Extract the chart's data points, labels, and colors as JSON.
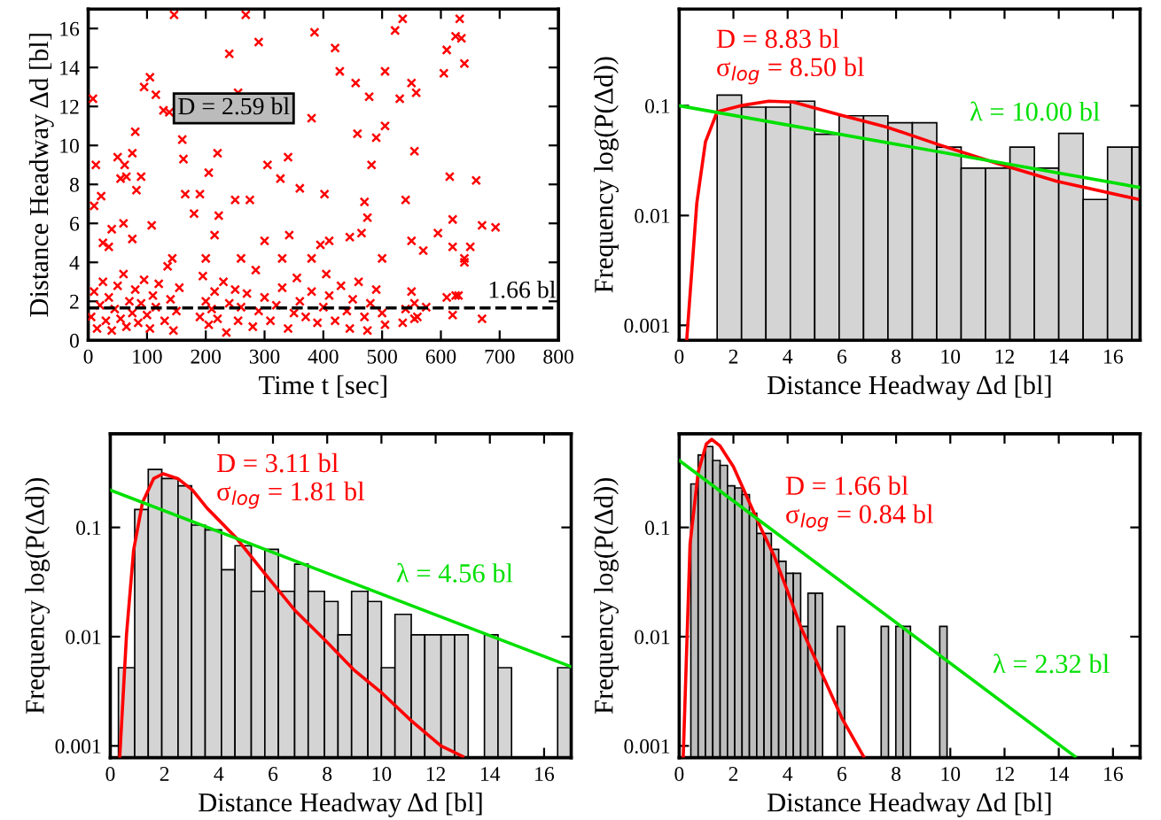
{
  "chart_data": [
    {
      "type": "scatter",
      "xlabel": "Time t [sec]",
      "ylabel": "Distance Headway Δd [bl]",
      "marker": "cross",
      "color": "#ff0000",
      "x": [
        8,
        13,
        10,
        22,
        40,
        50,
        62,
        65,
        55,
        75,
        82,
        80,
        90,
        95,
        105,
        115,
        128,
        138,
        146,
        160,
        162,
        165,
        180,
        190,
        205,
        220,
        222,
        240,
        255,
        250,
        268,
        275,
        290,
        305,
        327,
        340,
        360,
        385,
        380,
        402,
        420,
        428,
        455,
        458,
        470,
        478,
        482,
        490,
        505,
        505,
        522,
        530,
        535,
        540,
        550,
        558,
        555,
        605,
        610,
        625,
        632,
        635,
        640,
        615,
        595,
        620,
        640,
        650,
        670,
        693,
        660,
        555,
        670,
        75,
        35,
        25,
        60,
        108,
        143,
        200,
        215,
        260,
        300,
        330,
        342,
        380,
        395,
        410,
        445,
        465,
        500,
        550,
        570,
        475,
        5,
        10,
        15,
        20,
        25,
        30,
        35,
        40,
        45,
        50,
        55,
        60,
        65,
        70,
        75,
        80,
        85,
        90,
        95,
        100,
        105,
        110,
        115,
        120,
        130,
        135,
        140,
        145,
        150,
        155,
        190,
        195,
        200,
        205,
        210,
        215,
        220,
        230,
        235,
        240,
        250,
        255,
        260,
        270,
        280,
        285,
        290,
        300,
        310,
        320,
        330,
        340,
        350,
        355,
        360,
        370,
        380,
        390,
        400,
        405,
        410,
        420,
        430,
        440,
        445,
        450,
        460,
        470,
        475,
        480,
        490,
        500,
        505,
        535,
        540,
        550,
        555,
        560,
        575,
        610,
        620,
        625,
        630,
        640,
        620
      ],
      "values": [
        12.4,
        9.0,
        6.9,
        7.4,
        5.7,
        9.4,
        9.0,
        8.4,
        8.3,
        9.6,
        7.7,
        10.7,
        8.4,
        13.0,
        13.5,
        12.6,
        11.8,
        11.7,
        16.7,
        10.3,
        9.3,
        7.5,
        6.5,
        7.5,
        8.6,
        9.6,
        6.4,
        14.7,
        12.7,
        7.2,
        16.7,
        7.2,
        15.3,
        9.0,
        8.3,
        9.4,
        7.8,
        15.8,
        11.4,
        7.5,
        15.0,
        13.8,
        13.2,
        10.6,
        7.1,
        12.5,
        9.0,
        10.4,
        11.0,
        13.8,
        15.9,
        12.4,
        16.5,
        7.2,
        13.2,
        12.7,
        9.7,
        13.7,
        14.9,
        15.6,
        16.5,
        15.5,
        14.2,
        8.4,
        5.5,
        6.2,
        4.2,
        4.8,
        5.9,
        5.8,
        8.2,
        1.1,
        1.1,
        5.2,
        4.8,
        5.0,
        6.0,
        5.9,
        4.2,
        4.2,
        5.4,
        4.2,
        5.1,
        4.2,
        5.4,
        4.2,
        4.9,
        5.1,
        5.3,
        5.5,
        4.2,
        5.1,
        4.6,
        6.3,
        1.2,
        2.5,
        0.6,
        1.8,
        3.0,
        1.0,
        2.2,
        0.5,
        1.6,
        2.8,
        1.1,
        3.4,
        0.7,
        2.0,
        1.4,
        2.6,
        0.9,
        1.9,
        3.1,
        1.3,
        0.6,
        2.3,
        1.7,
        2.9,
        1.0,
        3.8,
        2.1,
        0.5,
        1.5,
        2.7,
        1.2,
        3.3,
        2.0,
        0.8,
        1.6,
        2.5,
        1.1,
        3.0,
        0.4,
        1.9,
        2.6,
        1.0,
        1.7,
        2.4,
        0.7,
        3.6,
        1.5,
        2.2,
        1.0,
        1.8,
        2.7,
        0.6,
        1.4,
        3.2,
        2.0,
        1.2,
        2.5,
        0.9,
        1.7,
        3.4,
        2.3,
        1.0,
        2.8,
        1.5,
        0.6,
        2.1,
        3.0,
        1.2,
        0.5,
        1.9,
        2.6,
        1.4,
        0.8,
        0.9,
        1.6,
        2.5,
        1.9,
        1.2,
        1.7,
        2.2,
        1.3,
        2.3,
        2.3,
        4.0,
        4.8
      ],
      "xlim": [
        0,
        800
      ],
      "xticks": [
        0,
        100,
        200,
        300,
        400,
        500,
        600,
        700,
        800
      ],
      "ylim": [
        0,
        17
      ],
      "yticks": [
        0,
        2,
        4,
        6,
        8,
        10,
        12,
        14,
        16
      ],
      "ref_lines": [
        {
          "axis": "y",
          "value": 1.66,
          "label": "1.66 bl",
          "color": "#000000",
          "line_style": "dashed"
        }
      ],
      "annotations": [
        "D = 2.59 bl"
      ]
    },
    {
      "type": "histogram",
      "xlabel": "Distance Headway Δd [bl]",
      "ylabel": "Frequency log(P(Δd))",
      "color": "#d4d4d4",
      "log": "y",
      "bins": [
        1.4,
        2.3,
        3.2,
        4.1,
        5.0,
        5.9,
        6.8,
        7.7,
        8.6,
        9.5,
        10.4,
        11.3,
        12.2,
        13.1,
        14.0,
        14.9,
        15.8,
        16.7,
        17.0
      ],
      "values": [
        0.125,
        0.097,
        0.097,
        0.11,
        0.055,
        0.081,
        0.081,
        0.07,
        0.07,
        0.042,
        0.027,
        0.027,
        0.042,
        0.027,
        0.056,
        0.014,
        0.042,
        0.042
      ],
      "series": [
        {
          "type": "line",
          "name": "D = 8.83 bl\nσ$_{log}$ = 8.50 bl",
          "color": "#ff0000",
          "x": [
            0.28,
            0.65,
            0.97,
            1.4,
            2.26,
            3.3,
            4.2,
            5.9,
            7.65,
            9.6,
            11.7,
            13.9,
            16.9
          ],
          "values": [
            0.00075,
            0.013,
            0.047,
            0.088,
            0.1,
            0.11,
            0.108,
            0.083,
            0.064,
            0.044,
            0.03,
            0.0206,
            0.0141
          ]
        },
        {
          "type": "line",
          "name": "λ = 10.00 bl",
          "color": "#00e000",
          "x": [
            0,
            17
          ],
          "values": [
            0.1,
            0.018
          ]
        }
      ],
      "xlim": [
        0,
        17
      ],
      "xticks": [
        0,
        2,
        4,
        6,
        8,
        10,
        12,
        14,
        16
      ],
      "ylim": [
        0.00073,
        0.76
      ],
      "yticks": [
        0.001,
        0.01,
        0.1
      ]
    },
    {
      "type": "histogram",
      "xlabel": "Distance Headway Δd [bl]",
      "ylabel": "Frequency log(P(Δd))",
      "color": "#d4d4d4",
      "log": "y",
      "bins": [
        0.3,
        0.9,
        1.4,
        1.9,
        2.5,
        3.0,
        3.5,
        4.1,
        4.6,
        5.2,
        5.7,
        6.2,
        6.8,
        7.3,
        7.9,
        8.4,
        8.9,
        9.5,
        10.0,
        10.5,
        11.1,
        11.6,
        12.2,
        12.7,
        13.2,
        13.8,
        14.3,
        14.8,
        16.5,
        17.0
      ],
      "values": [
        0.0052,
        0.146,
        0.34,
        0.28,
        0.24,
        0.105,
        0.095,
        0.041,
        0.068,
        0.026,
        0.063,
        0.026,
        0.046,
        0.026,
        0.021,
        0.0104,
        0.026,
        0.021,
        0.0052,
        0.016,
        0.0104,
        0.0104,
        0.0104,
        0.0104,
        null,
        0.0104,
        0.0052,
        null,
        0.0052
      ],
      "series": [
        {
          "type": "line",
          "name": "D = 3.11 bl\nσ$_{log}$ = 1.81 bl",
          "color": "#ff0000",
          "x": [
            0.35,
            0.6,
            0.86,
            1.19,
            1.6,
            1.95,
            2.49,
            3.03,
            3.57,
            4.65,
            5.73,
            6.8,
            7.9,
            8.97,
            10.05,
            11.1,
            12.2,
            13.0
          ],
          "values": [
            0.0008,
            0.0106,
            0.062,
            0.17,
            0.28,
            0.31,
            0.28,
            0.22,
            0.15,
            0.08,
            0.037,
            0.0175,
            0.0094,
            0.005,
            0.003,
            0.0017,
            0.001,
            0.0008
          ]
        },
        {
          "type": "line",
          "name": "λ = 4.56 bl",
          "color": "#00e000",
          "x": [
            0,
            17
          ],
          "values": [
            0.22,
            0.0053
          ]
        }
      ],
      "xlim": [
        0,
        17
      ],
      "xticks": [
        0,
        2,
        4,
        6,
        8,
        10,
        12,
        14,
        16
      ],
      "ylim": [
        0.00078,
        0.72
      ],
      "yticks": [
        0.001,
        0.01,
        0.1
      ]
    },
    {
      "type": "histogram",
      "xlabel": "Distance Headway Δd [bl]",
      "ylabel": "Frequency log(P(Δd))",
      "color": "#bdbdbd",
      "log": "y",
      "bins": [
        0.43,
        0.7,
        0.97,
        1.24,
        1.51,
        1.78,
        2.05,
        2.32,
        2.59,
        2.86,
        3.13,
        3.4,
        3.67,
        3.94,
        4.21,
        4.48,
        4.75,
        5.02,
        5.29,
        5.56,
        5.83,
        6.1,
        6.37,
        6.64,
        6.91,
        7.18,
        7.45,
        7.72,
        7.99,
        8.26,
        8.53,
        8.8,
        9.07,
        9.34,
        9.61,
        9.88
      ],
      "values": [
        0.25,
        0.46,
        0.55,
        0.41,
        0.37,
        0.24,
        0.23,
        0.2,
        0.135,
        0.088,
        0.088,
        0.063,
        0.049,
        0.038,
        0.038,
        0.0124,
        0.025,
        0.025,
        null,
        null,
        0.0124,
        null,
        null,
        null,
        null,
        null,
        0.0124,
        null,
        0.0124,
        0.0124,
        null,
        null,
        null,
        null,
        0.0124
      ],
      "series": [
        {
          "type": "line",
          "name": "D = 1.66 bl\nσ$_{log}$ = 0.84 bl",
          "color": "#ff0000",
          "x": [
            0.15,
            0.4,
            0.7,
            1.0,
            1.2,
            1.5,
            2.0,
            2.5,
            3.0,
            3.5,
            4.0,
            4.5,
            5.0,
            5.5,
            6.0,
            6.8
          ],
          "values": [
            0.0008,
            0.07,
            0.32,
            0.58,
            0.64,
            0.56,
            0.36,
            0.19,
            0.1,
            0.055,
            0.026,
            0.012,
            0.0064,
            0.0034,
            0.0018,
            0.0008
          ]
        },
        {
          "type": "line",
          "name": "λ = 2.32 bl",
          "color": "#00e000",
          "x": [
            0,
            14.6
          ],
          "values": [
            0.41,
            0.0008
          ]
        }
      ],
      "xlim": [
        0,
        17
      ],
      "xticks": [
        0,
        2,
        4,
        6,
        8,
        10,
        12,
        14,
        16
      ],
      "ylim": [
        0.00078,
        0.72
      ],
      "yticks": [
        0.001,
        0.01,
        0.1
      ]
    }
  ]
}
